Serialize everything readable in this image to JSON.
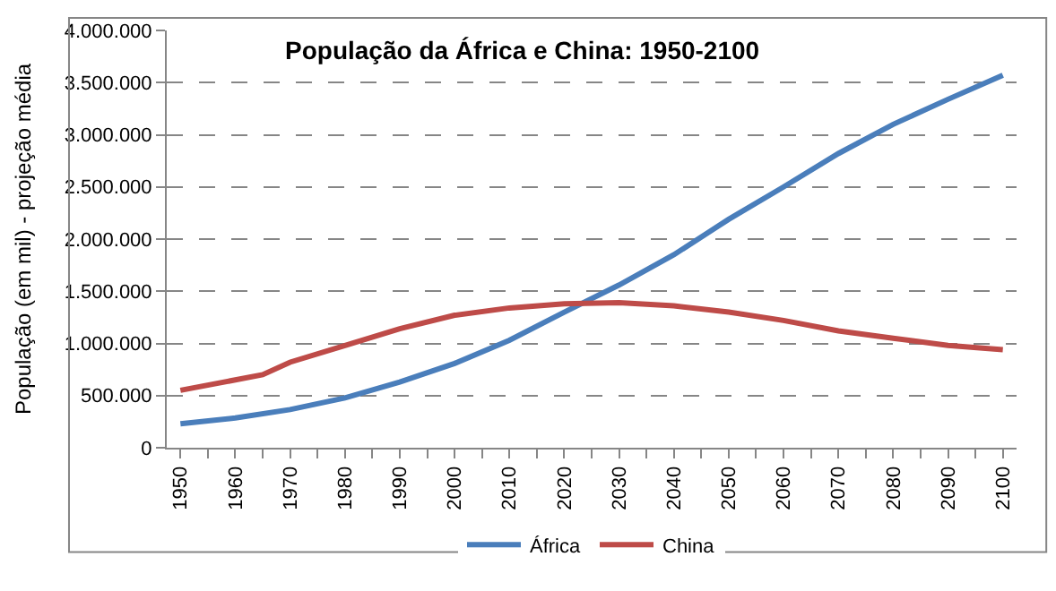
{
  "chart_data": {
    "type": "line",
    "title": "População da África e China: 1950-2100",
    "ylabel": "População (em mil) - projeção média",
    "xlim": [
      1947.5,
      2102.5
    ],
    "xticks": [
      1950,
      {
        "value": 1955,
        "label": null
      },
      1960,
      {
        "value": 1965,
        "label": null
      },
      1970,
      {
        "value": 1975,
        "label": null
      },
      1980,
      {
        "value": 1985,
        "label": null
      },
      1990,
      {
        "value": 1995,
        "label": null
      },
      2000,
      {
        "value": 2005,
        "label": null
      },
      2010,
      {
        "value": 2015,
        "label": null
      },
      2020,
      {
        "value": 2025,
        "label": null
      },
      2030,
      {
        "value": 2035,
        "label": null
      },
      2040,
      {
        "value": 2045,
        "label": null
      },
      2050,
      {
        "value": 2055,
        "label": null
      },
      2060,
      {
        "value": 2065,
        "label": null
      },
      2070,
      {
        "value": 2075,
        "label": null
      },
      2080,
      {
        "value": 2085,
        "label": null
      },
      2090,
      {
        "value": 2095,
        "label": null
      },
      2100
    ],
    "ylim": [
      0,
      4000000
    ],
    "yticks": [
      {
        "value": 0,
        "label": "0"
      },
      {
        "value": 500000,
        "label": "500.000"
      },
      {
        "value": 1000000,
        "label": "1.000.000"
      },
      {
        "value": 1500000,
        "label": "1.500.000"
      },
      {
        "value": 2000000,
        "label": "2.000.000"
      },
      {
        "value": 2500000,
        "label": "2.500.000"
      },
      {
        "value": 3000000,
        "label": "3.000.000"
      },
      {
        "value": 3500000,
        "label": "3.500.000"
      },
      {
        "value": 4000000,
        "label": "4.000.000"
      }
    ],
    "grid": "y",
    "legend": "bottom",
    "line_style": "solid",
    "marker": "none",
    "series": [
      {
        "name": "África",
        "color": "#4a7ebb",
        "x": [
          1950,
          1960,
          1970,
          1980,
          1990,
          2000,
          2010,
          2020,
          2030,
          2040,
          2050,
          2060,
          2070,
          2080,
          2090,
          2100
        ],
        "values": [
          229000,
          285000,
          366000,
          478000,
          630000,
          808000,
          1030000,
          1300000,
          1560000,
          1850000,
          2190000,
          2500000,
          2820000,
          3100000,
          3340000,
          3570000
        ]
      },
      {
        "name": "China",
        "color": "#be4b48",
        "x": [
          1950,
          1960,
          1965,
          1970,
          1980,
          1990,
          2000,
          2010,
          2020,
          2030,
          2040,
          2050,
          2060,
          2070,
          2080,
          2090,
          2100
        ],
        "values": [
          550000,
          650000,
          700000,
          820000,
          980000,
          1140000,
          1270000,
          1340000,
          1380000,
          1390000,
          1360000,
          1300000,
          1220000,
          1120000,
          1050000,
          980000,
          940000
        ]
      }
    ]
  }
}
